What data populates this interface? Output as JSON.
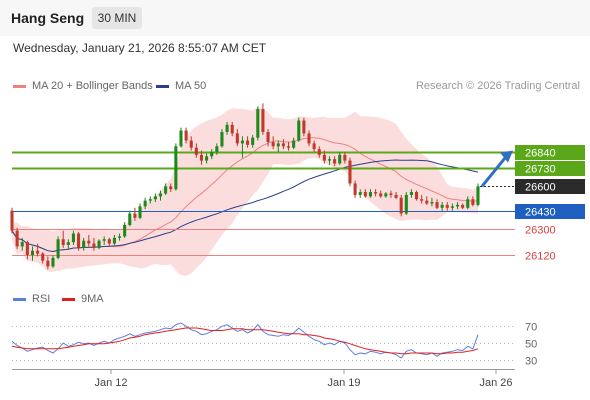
{
  "header": {
    "instrument": "Hang Seng",
    "interval": "30 MIN"
  },
  "timestamp": "Wednesday, January 21, 2026 8:55:07 AM CET",
  "legend": {
    "ma20": "MA 20 + Bollinger Bands",
    "ma50": "MA 50",
    "source": "Research © 2026 Trading Central",
    "rsi": "RSI",
    "rsi_ma": "9MA"
  },
  "colors": {
    "candle_up": "#1a8a1a",
    "candle_down": "#c0392b",
    "ma20": "#f08080",
    "bollinger_fill": "#fcd7d7",
    "ma50": "#2b3f8f",
    "resistance": "#5aa81a",
    "pivot": "#1f5fbf",
    "support": "#f08080",
    "last_price": "#2a2a2a",
    "rsi": "#5b7fdc",
    "rsi_ma": "#e02020"
  },
  "chart_data": [
    {
      "type": "candlestick",
      "title": "Hang Seng",
      "interval": "30 MIN",
      "x_ticks": [
        "Jan 12",
        "Jan 19",
        "Jan 26"
      ],
      "ylim": [
        25950,
        27000
      ],
      "series": [
        {
          "name": "MA 20 + Bollinger Bands"
        },
        {
          "name": "MA 50"
        }
      ],
      "price_levels": [
        {
          "label": "26840",
          "value": 26840,
          "kind": "resistance"
        },
        {
          "label": "26730",
          "value": 26730,
          "kind": "resistance"
        },
        {
          "label": "26600",
          "value": 26600,
          "kind": "last"
        },
        {
          "label": "26430",
          "value": 26430,
          "kind": "pivot"
        },
        {
          "label": "26300",
          "value": 26300,
          "kind": "support"
        },
        {
          "label": "26120",
          "value": 26120,
          "kind": "support"
        }
      ],
      "forecast": "up",
      "candles": [
        [
          26430,
          26450,
          26270,
          26290
        ],
        [
          26290,
          26310,
          26160,
          26180
        ],
        [
          26180,
          26240,
          26150,
          26210
        ],
        [
          26210,
          26220,
          26090,
          26120
        ],
        [
          26120,
          26180,
          26080,
          26150
        ],
        [
          26150,
          26200,
          26110,
          26130
        ],
        [
          26130,
          26140,
          26060,
          26080
        ],
        [
          26080,
          26110,
          26020,
          26040
        ],
        [
          26040,
          26120,
          26030,
          26100
        ],
        [
          26100,
          26250,
          26090,
          26230
        ],
        [
          26230,
          26290,
          26170,
          26190
        ],
        [
          26190,
          26230,
          26160,
          26210
        ],
        [
          26210,
          26290,
          26190,
          26270
        ],
        [
          26270,
          26280,
          26150,
          26170
        ],
        [
          26170,
          26240,
          26150,
          26220
        ],
        [
          26220,
          26260,
          26180,
          26200
        ],
        [
          26200,
          26240,
          26150,
          26170
        ],
        [
          26170,
          26230,
          26160,
          26220
        ],
        [
          26220,
          26250,
          26190,
          26230
        ],
        [
          26230,
          26240,
          26180,
          26200
        ],
        [
          26200,
          26260,
          26190,
          26240
        ],
        [
          26240,
          26270,
          26220,
          26250
        ],
        [
          26250,
          26350,
          26240,
          26330
        ],
        [
          26330,
          26430,
          26320,
          26410
        ],
        [
          26410,
          26450,
          26360,
          26380
        ],
        [
          26380,
          26480,
          26370,
          26460
        ],
        [
          26460,
          26520,
          26440,
          26500
        ],
        [
          26500,
          26530,
          26480,
          26510
        ],
        [
          26510,
          26550,
          26490,
          26530
        ],
        [
          26530,
          26570,
          26500,
          26550
        ],
        [
          26550,
          26620,
          26540,
          26600
        ],
        [
          26600,
          26620,
          26560,
          26580
        ],
        [
          26580,
          26900,
          26570,
          26880
        ],
        [
          26880,
          27010,
          26870,
          26990
        ],
        [
          26990,
          27010,
          26900,
          26920
        ],
        [
          26920,
          26950,
          26850,
          26870
        ],
        [
          26870,
          26900,
          26800,
          26820
        ],
        [
          26820,
          26850,
          26750,
          26780
        ],
        [
          26780,
          26830,
          26760,
          26810
        ],
        [
          26810,
          26860,
          26790,
          26840
        ],
        [
          26840,
          26900,
          26820,
          26880
        ],
        [
          26880,
          27000,
          26870,
          26980
        ],
        [
          26980,
          27050,
          26960,
          27030
        ],
        [
          27030,
          27050,
          26950,
          26970
        ],
        [
          26970,
          27000,
          26880,
          26900
        ],
        [
          26900,
          26950,
          26800,
          26920
        ],
        [
          26920,
          26950,
          26870,
          26890
        ],
        [
          26890,
          26960,
          26870,
          26940
        ],
        [
          26940,
          27160,
          26920,
          27140
        ],
        [
          27140,
          27180,
          26960,
          26980
        ],
        [
          26980,
          27000,
          26880,
          26910
        ],
        [
          26910,
          26950,
          26860,
          26880
        ],
        [
          26880,
          26920,
          26840,
          26900
        ],
        [
          26900,
          26930,
          26860,
          26880
        ],
        [
          26880,
          26910,
          26850,
          26870
        ],
        [
          26870,
          26940,
          26860,
          26920
        ],
        [
          26920,
          27080,
          26910,
          27060
        ],
        [
          27060,
          27080,
          26950,
          26970
        ],
        [
          26970,
          26990,
          26880,
          26900
        ],
        [
          26900,
          26920,
          26840,
          26860
        ],
        [
          26860,
          26880,
          26800,
          26820
        ],
        [
          26820,
          26850,
          26760,
          26780
        ],
        [
          26780,
          26810,
          26750,
          26790
        ],
        [
          26790,
          26810,
          26740,
          26760
        ],
        [
          26760,
          26840,
          26750,
          26820
        ],
        [
          26820,
          26840,
          26760,
          26780
        ],
        [
          26780,
          26800,
          26600,
          26620
        ],
        [
          26620,
          26640,
          26520,
          26540
        ],
        [
          26540,
          26580,
          26520,
          26560
        ],
        [
          26560,
          26580,
          26520,
          26530
        ],
        [
          26530,
          26580,
          26520,
          26560
        ],
        [
          26560,
          26580,
          26530,
          26550
        ],
        [
          26550,
          26570,
          26520,
          26530
        ],
        [
          26530,
          26560,
          26520,
          26550
        ],
        [
          26550,
          26570,
          26520,
          26540
        ],
        [
          26540,
          26560,
          26510,
          26520
        ],
        [
          26520,
          26540,
          26390,
          26410
        ],
        [
          26410,
          26560,
          26400,
          26540
        ],
        [
          26540,
          26580,
          26520,
          26560
        ],
        [
          26560,
          26570,
          26500,
          26510
        ],
        [
          26510,
          26540,
          26480,
          26500
        ],
        [
          26500,
          26530,
          26470,
          26480
        ],
        [
          26480,
          26520,
          26460,
          26490
        ],
        [
          26490,
          26510,
          26440,
          26450
        ],
        [
          26450,
          26490,
          26420,
          26470
        ],
        [
          26470,
          26490,
          26430,
          26450
        ],
        [
          26450,
          26480,
          26430,
          26460
        ],
        [
          26460,
          26490,
          26440,
          26470
        ],
        [
          26470,
          26480,
          26440,
          26450
        ],
        [
          26450,
          26530,
          26440,
          26510
        ],
        [
          26510,
          26530,
          26460,
          26470
        ],
        [
          26470,
          26620,
          26460,
          26600
        ]
      ]
    },
    {
      "type": "line",
      "title": "",
      "x_ticks": [
        "Jan 12",
        "Jan 19",
        "Jan 26"
      ],
      "yticks": [
        30,
        50,
        70
      ],
      "ylim": [
        20,
        80
      ],
      "series": [
        {
          "name": "RSI",
          "values": [
            52,
            47,
            44,
            40,
            42,
            44,
            45,
            41,
            38,
            43,
            50,
            46,
            48,
            51,
            49,
            50,
            47,
            50,
            52,
            50,
            54,
            56,
            58,
            61,
            58,
            60,
            62,
            63,
            64,
            66,
            68,
            67,
            72,
            74,
            70,
            66,
            64,
            60,
            61,
            64,
            66,
            70,
            72,
            68,
            64,
            66,
            62,
            65,
            72,
            64,
            60,
            59,
            58,
            60,
            59,
            62,
            68,
            63,
            58,
            54,
            52,
            48,
            50,
            48,
            52,
            50,
            42,
            36,
            38,
            37,
            40,
            39,
            37,
            39,
            38,
            36,
            32,
            40,
            42,
            38,
            37,
            36,
            38,
            34,
            38,
            39,
            40,
            42,
            41,
            46,
            43,
            60
          ]
        },
        {
          "name": "9MA",
          "values": [
            46,
            45,
            44,
            43,
            43,
            43,
            43,
            43,
            43,
            43,
            44,
            45,
            46,
            47,
            48,
            49,
            49,
            49,
            49,
            50,
            51,
            52,
            54,
            56,
            57,
            58,
            60,
            61,
            62,
            63,
            64,
            65,
            66,
            67,
            68,
            68,
            68,
            67,
            66,
            65,
            65,
            65,
            66,
            67,
            67,
            67,
            66,
            66,
            66,
            66,
            65,
            64,
            63,
            62,
            61,
            61,
            61,
            60,
            60,
            59,
            58,
            56,
            55,
            54,
            52,
            51,
            49,
            47,
            45,
            43,
            42,
            41,
            40,
            39,
            38,
            38,
            37,
            37,
            38,
            38,
            38,
            38,
            38,
            37,
            37,
            38,
            38,
            39,
            39,
            40,
            41,
            43
          ]
        }
      ]
    }
  ]
}
